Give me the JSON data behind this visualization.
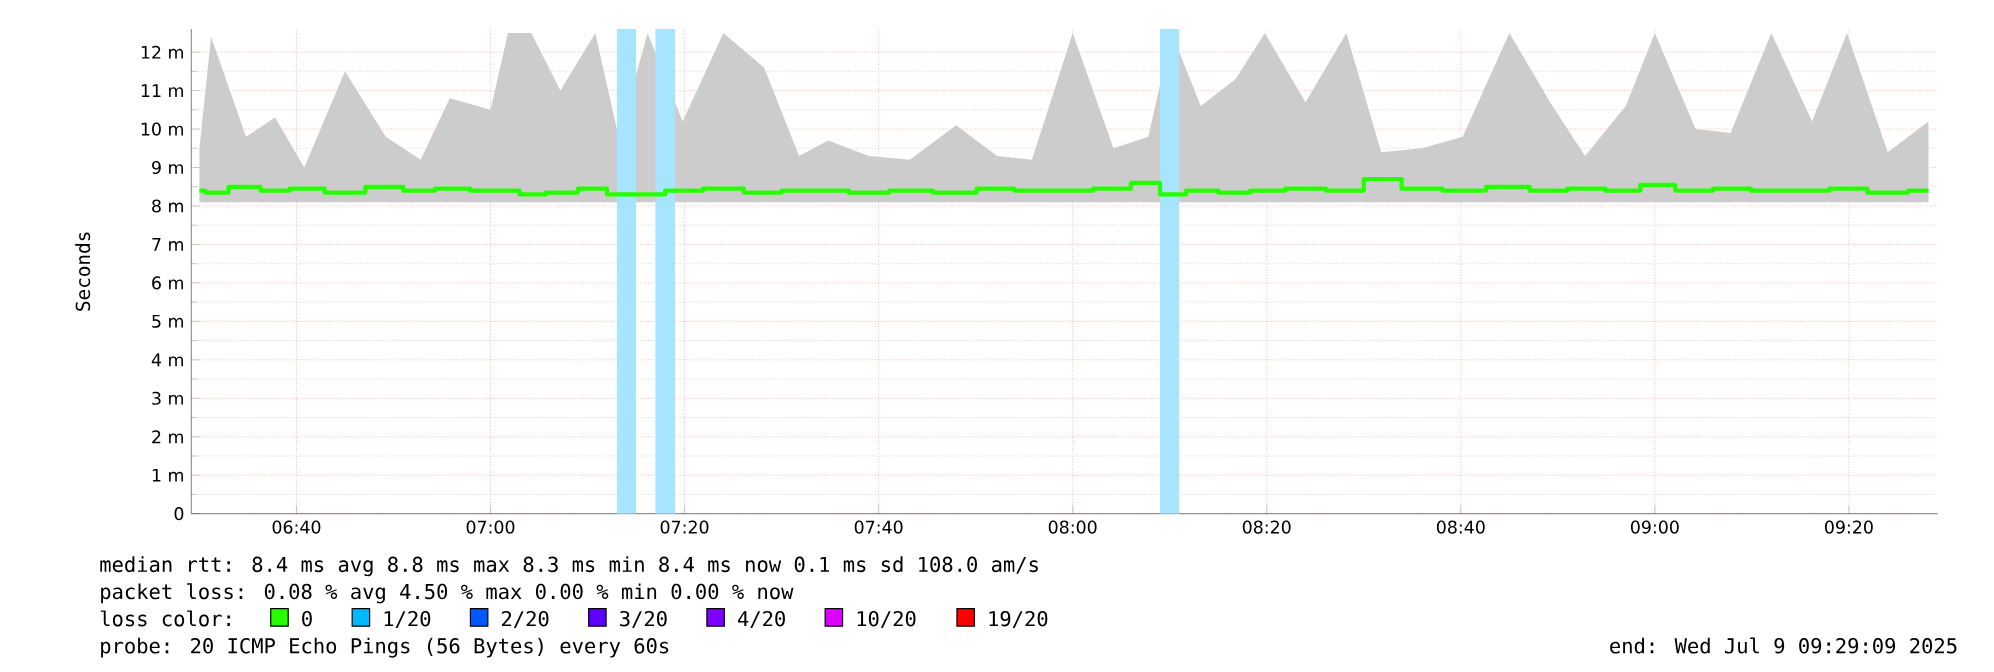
{
  "chart_data": {
    "type": "step",
    "ylabel": "Seconds",
    "x": [
      6.5,
      6.52,
      6.58,
      6.63,
      6.68,
      6.75,
      6.82,
      6.88,
      6.93,
      7.0,
      7.03,
      7.07,
      7.12,
      7.18,
      7.22,
      7.27,
      7.33,
      7.4,
      7.47,
      7.53,
      7.58,
      7.65,
      7.72,
      7.8,
      7.87,
      7.93,
      8.0,
      8.07,
      8.13,
      8.17,
      8.22,
      8.28,
      8.33,
      8.4,
      8.47,
      8.53,
      8.6,
      8.67,
      8.75,
      8.82,
      8.88,
      8.95,
      9.0,
      9.07,
      9.13,
      9.2,
      9.27,
      9.33,
      9.4,
      9.47
    ],
    "series": [
      {
        "name": "0",
        "color": "#26ff00",
        "values": [
          8.4,
          8.35,
          8.5,
          8.4,
          8.45,
          8.35,
          8.5,
          8.4,
          8.45,
          8.4,
          8.4,
          8.3,
          8.35,
          8.45,
          8.3,
          8.3,
          8.4,
          8.45,
          8.35,
          8.4,
          8.4,
          8.35,
          8.4,
          8.35,
          8.45,
          8.4,
          8.4,
          8.45,
          8.6,
          8.3,
          8.4,
          8.35,
          8.4,
          8.45,
          8.4,
          8.7,
          8.45,
          8.4,
          8.5,
          8.4,
          8.45,
          8.4,
          8.55,
          8.4,
          8.45,
          8.4,
          8.4,
          8.45,
          8.35,
          8.4
        ],
        "lower": [
          8.1,
          8.1,
          8.1,
          8.1,
          8.1,
          8.1,
          8.1,
          8.1,
          8.1,
          8.1,
          8.1,
          8.1,
          8.1,
          8.1,
          8.1,
          8.1,
          8.1,
          8.1,
          8.1,
          8.1,
          8.1,
          8.1,
          8.1,
          8.1,
          8.1,
          8.1,
          8.1,
          8.1,
          8.1,
          8.1,
          8.1,
          8.1,
          8.1,
          8.1,
          8.1,
          8.1,
          8.1,
          8.1,
          8.1,
          8.1,
          8.1,
          8.1,
          8.1,
          8.1,
          8.1,
          8.1,
          8.1,
          8.1,
          8.1,
          8.1
        ],
        "upper": [
          9.5,
          12.4,
          9.8,
          10.3,
          9.0,
          11.5,
          9.8,
          9.2,
          10.8,
          10.5,
          12.5,
          12.5,
          11.0,
          12.5,
          9.8,
          12.5,
          10.2,
          12.5,
          11.6,
          9.3,
          9.7,
          9.3,
          9.2,
          10.1,
          9.3,
          9.2,
          12.5,
          9.5,
          9.8,
          12.5,
          10.6,
          11.3,
          12.5,
          10.7,
          12.5,
          9.4,
          9.5,
          9.8,
          12.5,
          10.7,
          9.3,
          10.6,
          12.5,
          10.0,
          9.9,
          12.5,
          10.2,
          12.5,
          9.4,
          10.2
        ]
      },
      {
        "name": "1/20",
        "color": "#00b8ff",
        "values": [
          null,
          null,
          null,
          null,
          null,
          null,
          null,
          null,
          null,
          null,
          null,
          null,
          null,
          null,
          null,
          null,
          null,
          null,
          null,
          null,
          null,
          null,
          null,
          null,
          null,
          null,
          null,
          null,
          null,
          null,
          null,
          null,
          null,
          null,
          null,
          null,
          null,
          null,
          null,
          null,
          null,
          null,
          null,
          null,
          null,
          null,
          null,
          null,
          null,
          null
        ]
      },
      {
        "name": "2/20",
        "color": "#0059ff",
        "values": [
          null,
          null,
          null,
          null,
          null,
          null,
          null,
          null,
          null,
          null,
          null,
          null,
          null,
          null,
          null,
          null,
          null,
          null,
          null,
          null,
          null,
          null,
          null,
          null,
          null,
          null,
          null,
          null,
          null,
          null,
          null,
          null,
          null,
          null,
          null,
          null,
          null,
          null,
          null,
          null,
          null,
          null,
          null,
          null,
          null,
          null,
          null,
          null,
          null,
          null
        ]
      },
      {
        "name": "3/20",
        "color": "#5e00ff",
        "values": [
          null,
          null,
          null,
          null,
          null,
          null,
          null,
          null,
          null,
          null,
          null,
          null,
          null,
          null,
          null,
          null,
          null,
          null,
          null,
          null,
          null,
          null,
          null,
          null,
          null,
          null,
          null,
          null,
          null,
          null,
          null,
          null,
          null,
          null,
          null,
          null,
          null,
          null,
          null,
          null,
          null,
          null,
          null,
          null,
          null,
          null,
          null,
          null,
          null,
          null
        ]
      },
      {
        "name": "4/20",
        "color": "#7e00ff",
        "values": [
          null,
          null,
          null,
          null,
          null,
          null,
          null,
          null,
          null,
          null,
          null,
          null,
          null,
          null,
          null,
          null,
          null,
          null,
          null,
          null,
          null,
          null,
          null,
          null,
          null,
          null,
          null,
          null,
          null,
          null,
          null,
          null,
          null,
          null,
          null,
          null,
          null,
          null,
          null,
          null,
          null,
          null,
          null,
          null,
          null,
          null,
          null,
          null,
          null,
          null
        ]
      },
      {
        "name": "10/20",
        "color": "#dd00ff",
        "values": [
          null,
          null,
          null,
          null,
          null,
          null,
          null,
          null,
          null,
          null,
          null,
          null,
          null,
          null,
          null,
          null,
          null,
          null,
          null,
          null,
          null,
          null,
          null,
          null,
          null,
          null,
          null,
          null,
          null,
          null,
          null,
          null,
          null,
          null,
          null,
          null,
          null,
          null,
          null,
          null,
          null,
          null,
          null,
          null,
          null,
          null,
          null,
          null,
          null,
          null
        ]
      },
      {
        "name": "19/20",
        "color": "#ff0000",
        "values": [
          null,
          null,
          null,
          null,
          null,
          null,
          null,
          null,
          null,
          null,
          null,
          null,
          null,
          null,
          null,
          null,
          null,
          null,
          null,
          null,
          null,
          null,
          null,
          null,
          null,
          null,
          null,
          null,
          null,
          null,
          null,
          null,
          null,
          null,
          null,
          null,
          null,
          null,
          null,
          null,
          null,
          null,
          null,
          null,
          null,
          null,
          null,
          null,
          null,
          null
        ]
      }
    ],
    "legend_title": "loss color:",
    "legend": "bottom",
    "bands": [
      {
        "axis": "x",
        "from": 7.217,
        "to": 7.25,
        "color": "#a6e4ff"
      },
      {
        "axis": "x",
        "from": 7.283,
        "to": 7.317,
        "color": "#a6e4ff"
      },
      {
        "axis": "x",
        "from": 8.15,
        "to": 8.183,
        "color": "#a6e4ff"
      }
    ],
    "xlim": [
      6.486,
      9.486
    ],
    "xticks": [
      {
        "value": 6.6667,
        "label": "06:40"
      },
      {
        "value": 7,
        "label": "07:00"
      },
      {
        "value": 7.3333,
        "label": "07:20"
      },
      {
        "value": 7.6667,
        "label": "07:40"
      },
      {
        "value": 8,
        "label": "08:00"
      },
      {
        "value": 8.3333,
        "label": "08:20"
      },
      {
        "value": 8.6667,
        "label": "08:40"
      },
      {
        "value": 9,
        "label": "09:00"
      },
      {
        "value": 9.3333,
        "label": "09:20"
      }
    ],
    "ylim": [
      0,
      12.6
    ],
    "yticks": [
      0,
      {
        "value": 1,
        "label": "1 m"
      },
      {
        "value": 2,
        "label": "2 m"
      },
      {
        "value": 3,
        "label": "3 m"
      },
      {
        "value": 4,
        "label": "4 m"
      },
      {
        "value": 5,
        "label": "5 m"
      },
      {
        "value": 6,
        "label": "6 m"
      },
      {
        "value": 7,
        "label": "7 m"
      },
      {
        "value": 8,
        "label": "8 m"
      },
      {
        "value": 9,
        "label": "9 m"
      },
      {
        "value": 10,
        "label": "10 m"
      },
      {
        "value": 11,
        "label": "11 m"
      },
      {
        "value": 12,
        "label": "12 m"
      }
    ],
    "grid": true,
    "annotations": [
      "median rtt:  8.4 ms avg  8.8 ms max  8.3 ms min  8.4 ms now  0.1 ms sd  108.0   am/s",
      "packet loss: 0.08 % avg  4.50 % max  0.00 % min  0.00 % now",
      "probe:       20 ICMP Echo Pings (56 Bytes) every 60s",
      "end: Wed Jul  9 09:29:09 2025"
    ]
  }
}
